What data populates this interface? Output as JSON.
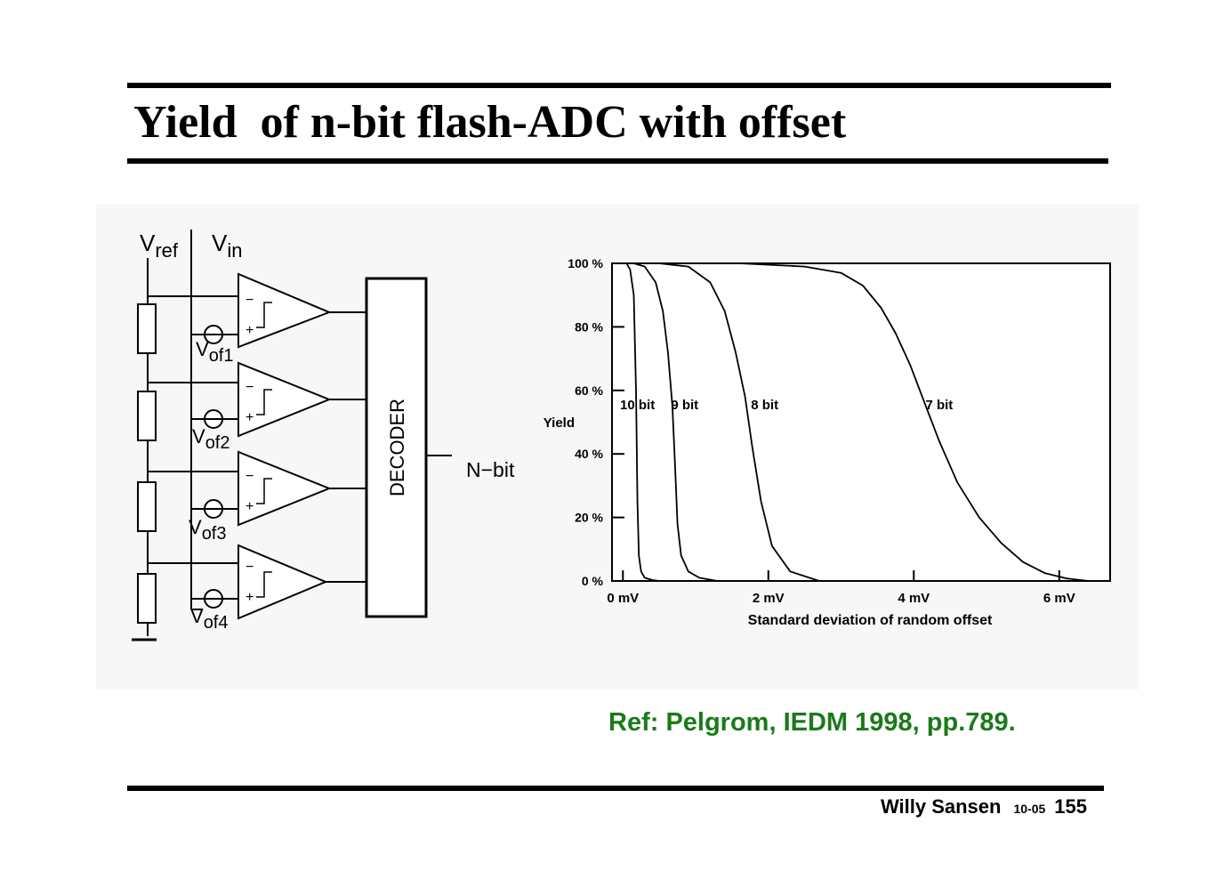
{
  "slide": {
    "title": "Yield  of n-bit flash-ADC with offset",
    "reference": "Ref: Pelgrom, IEDM 1998, pp.789.",
    "footer": {
      "author": "Willy Sansen",
      "date": "10-05",
      "page": "155"
    },
    "colors": {
      "reference_text": "#1a7a1a",
      "panel": "#f7f7f7",
      "ink": "#000000"
    }
  },
  "circuit": {
    "vref_label": "V",
    "vref_sub": "ref",
    "vin_label": "V",
    "vin_sub": "in",
    "offset_sources": [
      {
        "label": "V",
        "sub": "of1"
      },
      {
        "label": "V",
        "sub": "of2"
      },
      {
        "label": "V",
        "sub": "of3"
      },
      {
        "label": "V",
        "sub": "of4"
      }
    ],
    "comparator_minus": "−",
    "comparator_plus": "+",
    "decoder_label": "DECODER",
    "output_label": "N−bit"
  },
  "chart_data": {
    "type": "line",
    "ylabel": "Yield",
    "xlabel": "Standard deviation of random offset",
    "x_ticks": [
      "0 mV",
      "2 mV",
      "4 mV",
      "6 mV"
    ],
    "x_tick_values": [
      0,
      2,
      4,
      6
    ],
    "y_ticks": [
      "100 %",
      "80 %",
      "60 %",
      "40 %",
      "20 %",
      "0 %"
    ],
    "y_tick_values": [
      100,
      80,
      60,
      40,
      20,
      0
    ],
    "xlim": [
      -0.15,
      6.7
    ],
    "ylim": [
      0,
      100
    ],
    "grid": false,
    "series": [
      {
        "name": "10 bit",
        "label_at": [
          0.2,
          54
        ],
        "x": [
          0.05,
          0.1,
          0.15,
          0.18,
          0.2,
          0.22,
          0.25,
          0.3,
          0.4,
          0.5
        ],
        "y": [
          100,
          98,
          90,
          60,
          25,
          8,
          3,
          1,
          0.3,
          0
        ]
      },
      {
        "name": "9 bit",
        "label_at": [
          0.85,
          54
        ],
        "x": [
          0.15,
          0.3,
          0.45,
          0.55,
          0.62,
          0.68,
          0.72,
          0.75,
          0.8,
          0.9,
          1.05,
          1.3
        ],
        "y": [
          100,
          99,
          94,
          85,
          72,
          55,
          35,
          18,
          8,
          3,
          1,
          0
        ]
      },
      {
        "name": "8 bit",
        "label_at": [
          1.95,
          54
        ],
        "x": [
          0.5,
          0.9,
          1.2,
          1.4,
          1.55,
          1.68,
          1.78,
          1.9,
          2.05,
          2.3,
          2.7
        ],
        "y": [
          100,
          99,
          94,
          85,
          72,
          58,
          42,
          25,
          11,
          3,
          0
        ]
      },
      {
        "name": "7 bit",
        "label_at": [
          4.35,
          54
        ],
        "x": [
          1.6,
          2.5,
          3.0,
          3.3,
          3.55,
          3.75,
          3.95,
          4.15,
          4.35,
          4.6,
          4.9,
          5.2,
          5.5,
          5.8,
          6.1,
          6.4
        ],
        "y": [
          100,
          99,
          97,
          93,
          86,
          78,
          68,
          56,
          44,
          31,
          20,
          12,
          6,
          2.5,
          0.8,
          0
        ]
      }
    ]
  }
}
